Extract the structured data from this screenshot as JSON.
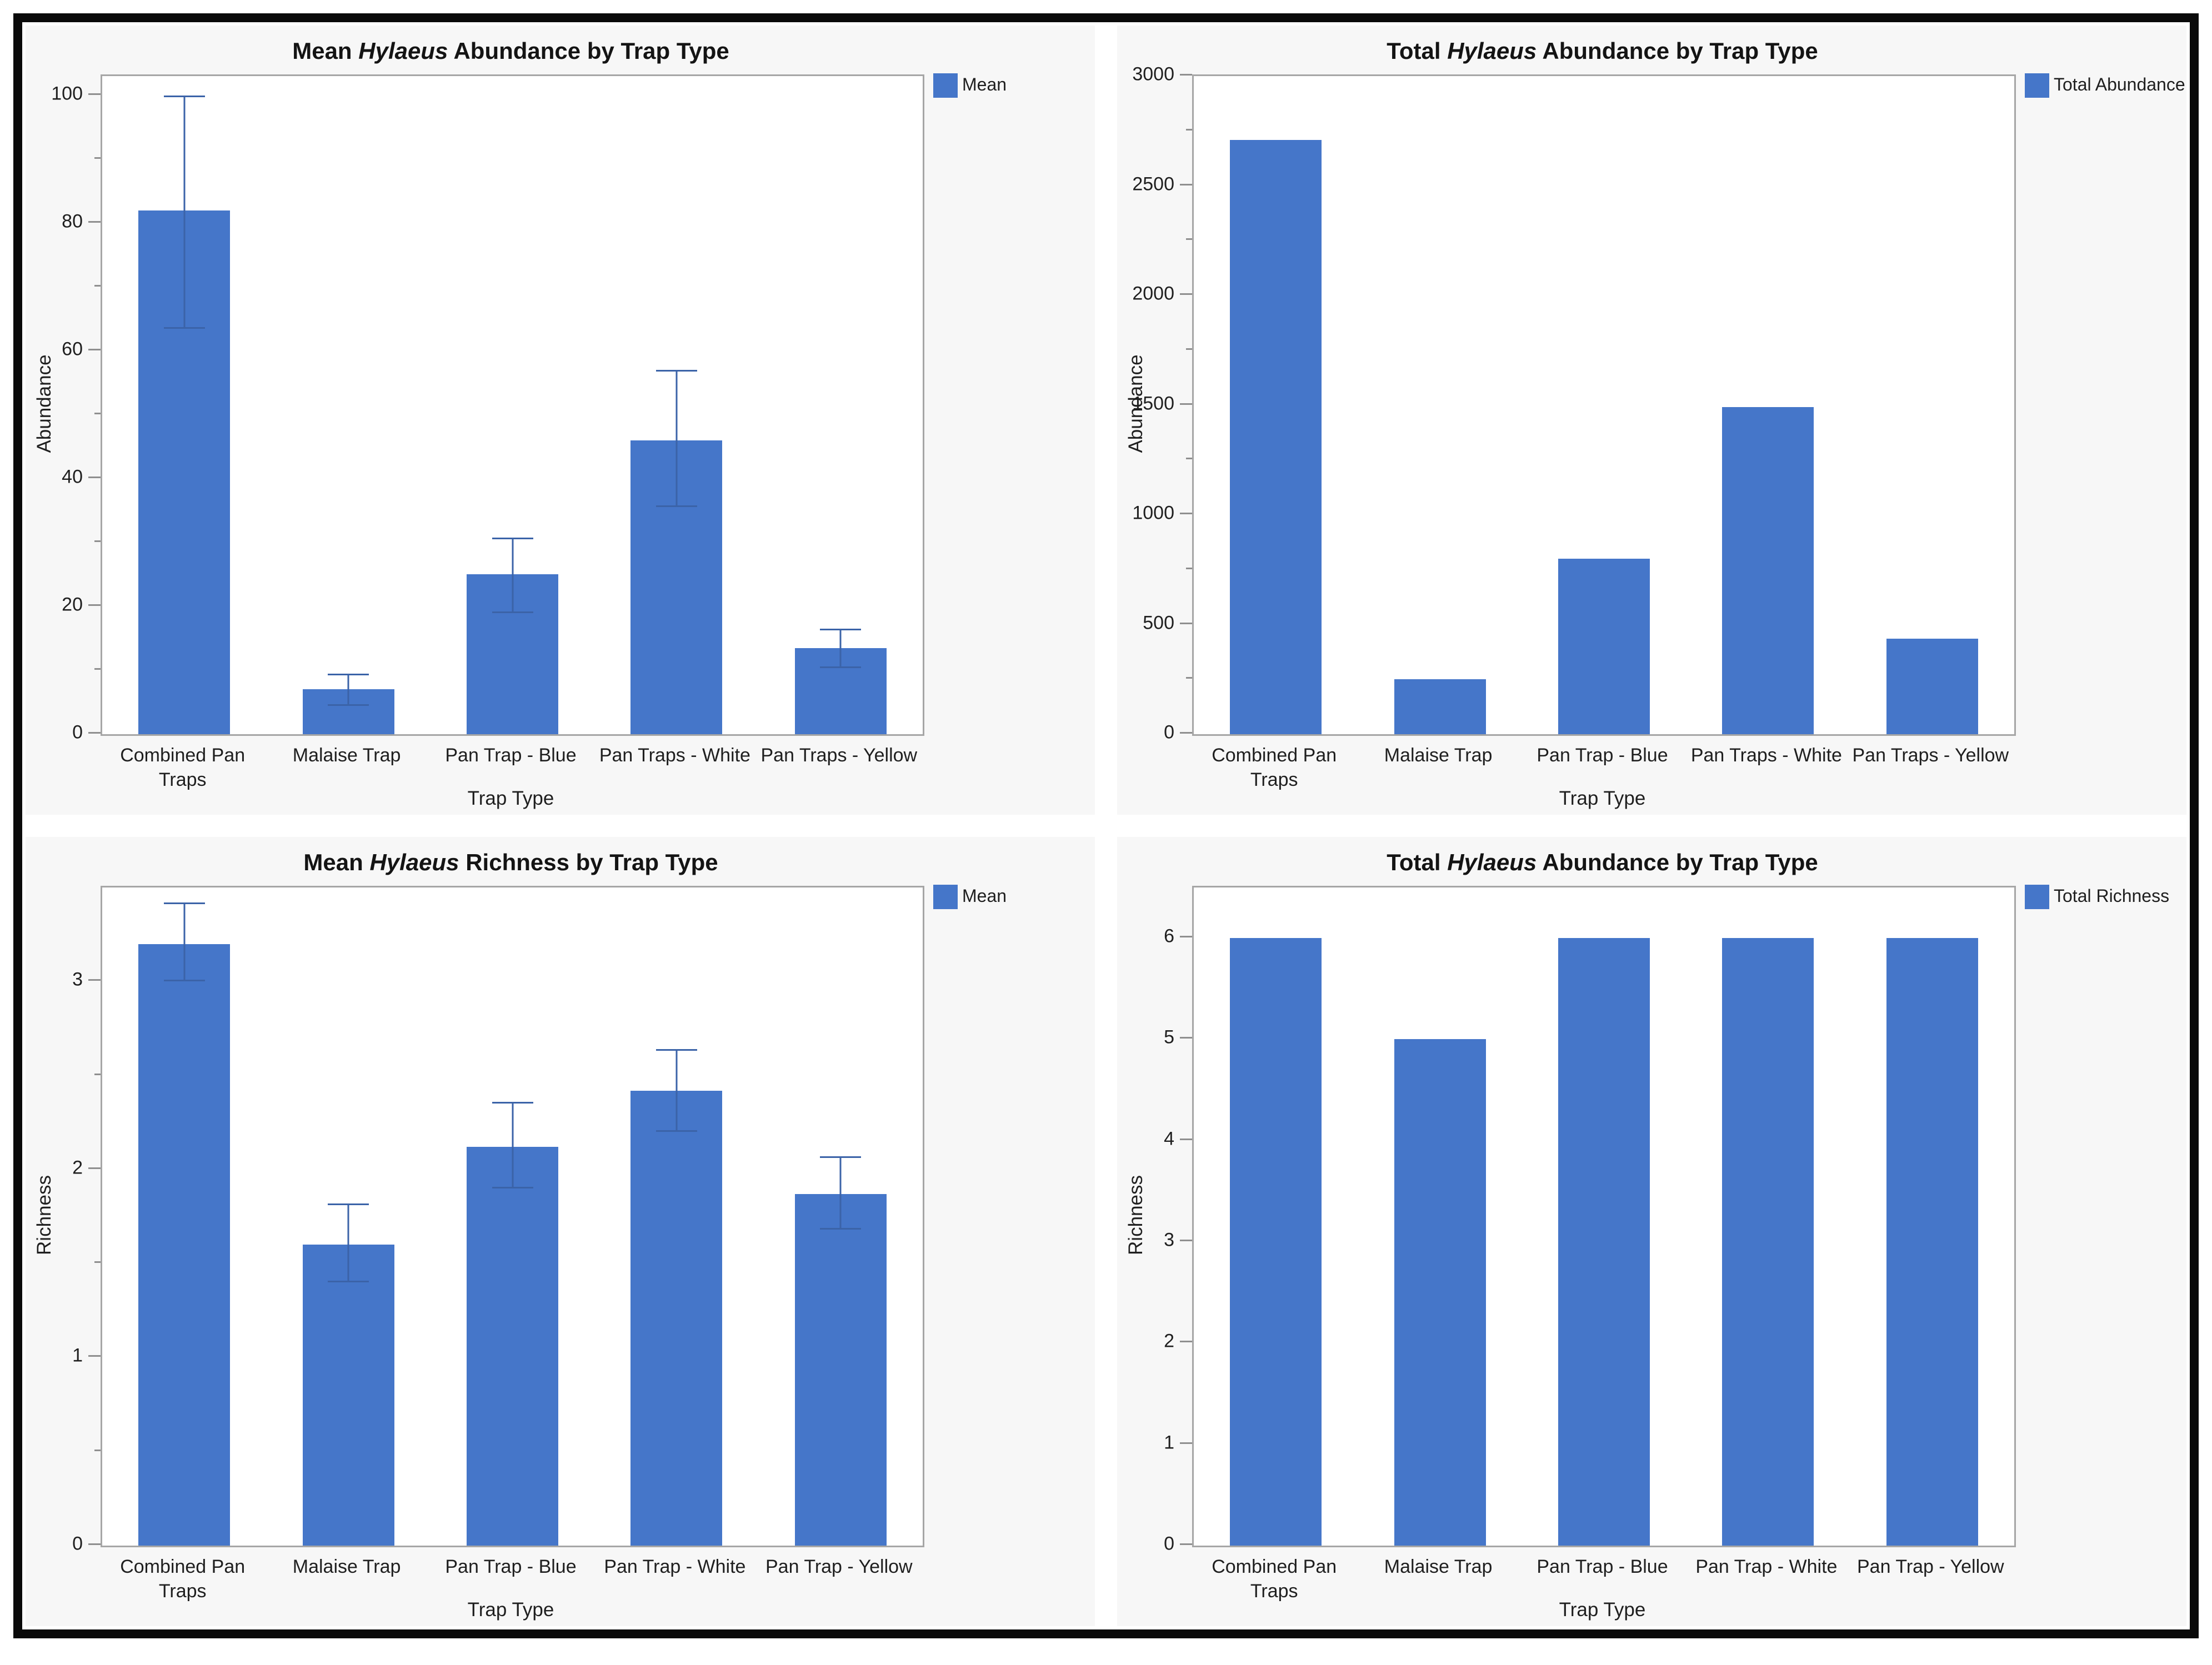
{
  "figure": {
    "frame_border_color": "#0a0a0a",
    "panel_background": "#f7f7f7",
    "plot_background": "#ffffff",
    "plot_border_color": "#a6a6a6",
    "bar_color": "#4576c9",
    "error_bar_color": "#3b63a8",
    "text_color": "#1f1f1f"
  },
  "chart_data": [
    {
      "type": "bar",
      "title": "Mean Hylaeus Abundance by Trap Type",
      "title_parts": {
        "prefix": "Mean ",
        "italic": "Hylaeus",
        "suffix": " Abundance by Trap Type"
      },
      "xlabel": "Trap Type",
      "ylabel": "Abundance",
      "categories": [
        "Combined Pan Traps",
        "Malaise Trap",
        "Pan Trap - Blue",
        "Pan Traps - White",
        "Pan Traps - Yellow"
      ],
      "series": [
        {
          "name": "Mean",
          "values": [
            82,
            7,
            25,
            46,
            13.5
          ],
          "error_low": [
            63.5,
            4.5,
            19,
            35.5,
            10.3
          ],
          "error_high": [
            100,
            9.5,
            30.8,
            57,
            16.5
          ]
        }
      ],
      "ylim": [
        0,
        103
      ],
      "yticks": {
        "major_step": 20,
        "minor_step": 10,
        "max_label": 100
      },
      "legend": {
        "label": "Mean",
        "position": "top-right"
      },
      "grid": false
    },
    {
      "type": "bar",
      "title": "Total Hylaeus Abundance by Trap Type",
      "title_parts": {
        "prefix": "Total ",
        "italic": "Hylaeus",
        "suffix": " Abundance by Trap Type"
      },
      "xlabel": "Trap Type",
      "ylabel": "Abundance",
      "categories": [
        "Combined Pan Traps",
        "Malaise Trap",
        "Pan Trap - Blue",
        "Pan Traps - White",
        "Pan Traps - Yellow"
      ],
      "series": [
        {
          "name": "Total Abundance",
          "values": [
            2710,
            250,
            800,
            1490,
            435
          ],
          "error_low": null,
          "error_high": null
        }
      ],
      "ylim": [
        0,
        3000
      ],
      "yticks": {
        "major_step": 500,
        "minor_step": 250,
        "max_label": 3000
      },
      "legend": {
        "label": "Total Abundance",
        "position": "top-right"
      },
      "grid": false
    },
    {
      "type": "bar",
      "title": "Mean Hylaeus Richness by Trap Type",
      "title_parts": {
        "prefix": "Mean ",
        "italic": "Hylaeus",
        "suffix": " Richness by Trap Type"
      },
      "xlabel": "Trap Type",
      "ylabel": "Richness",
      "categories": [
        "Combined Pan Traps",
        "Malaise Trap",
        "Pan Trap - Blue",
        "Pan Trap - White",
        "Pan Trap - Yellow"
      ],
      "series": [
        {
          "name": "Mean",
          "values": [
            3.2,
            1.6,
            2.12,
            2.42,
            1.87
          ],
          "error_low": [
            3.0,
            1.4,
            1.9,
            2.2,
            1.68
          ],
          "error_high": [
            3.42,
            1.82,
            2.36,
            2.64,
            2.07
          ]
        }
      ],
      "ylim": [
        0,
        3.5
      ],
      "yticks": {
        "major_step": 1,
        "minor_step": 0.5,
        "max_label": 3
      },
      "legend": {
        "label": "Mean",
        "position": "top-right"
      },
      "grid": false
    },
    {
      "type": "bar",
      "title": "Total Hylaeus Abundance by Trap Type",
      "title_parts": {
        "prefix": "Total ",
        "italic": "Hylaeus",
        "suffix": " Abundance by Trap Type"
      },
      "xlabel": "Trap Type",
      "ylabel": "Richness",
      "categories": [
        "Combined Pan Traps",
        "Malaise Trap",
        "Pan Trap - Blue",
        "Pan Trap - White",
        "Pan Trap - Yellow"
      ],
      "series": [
        {
          "name": "Total Richness",
          "values": [
            6,
            5,
            6,
            6,
            6
          ],
          "error_low": null,
          "error_high": null
        }
      ],
      "ylim": [
        0,
        6.5
      ],
      "yticks": {
        "major_step": 1,
        "minor_step": null,
        "max_label": 6
      },
      "legend": {
        "label": "Total Richness",
        "position": "top-right"
      },
      "grid": false
    }
  ]
}
